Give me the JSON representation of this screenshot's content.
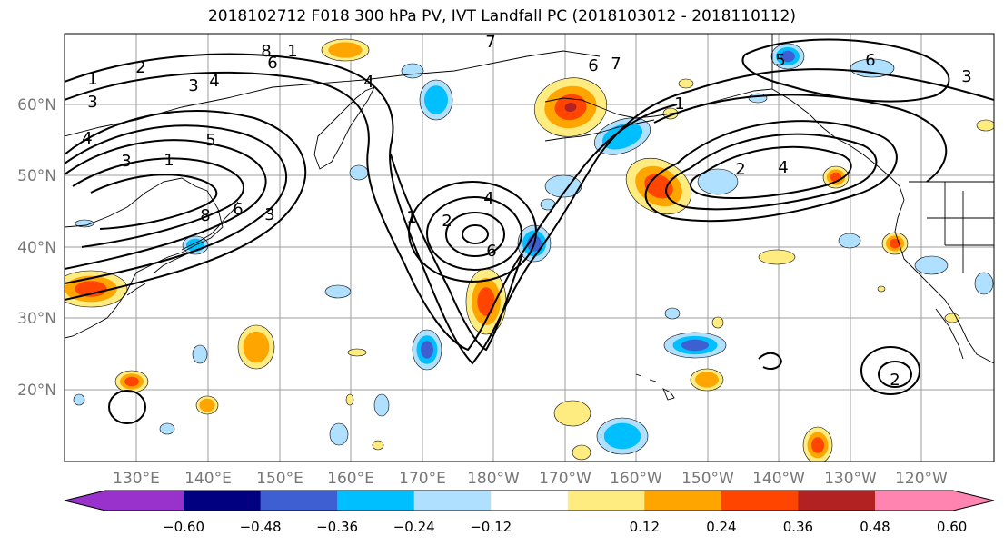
{
  "title": "2018102712 F018 300 hPa PV, IVT Landfall PC (2018103012 - 2018110112)",
  "map": {
    "longitude_labels": [
      "130°E",
      "140°E",
      "150°E",
      "160°E",
      "170°E",
      "180°W",
      "170°W",
      "160°W",
      "150°W",
      "140°W",
      "130°W",
      "120°W"
    ],
    "latitude_labels": [
      "60°N",
      "50°N",
      "40°N",
      "30°N",
      "20°N"
    ],
    "contour_labels": [
      "1",
      "2",
      "3",
      "4",
      "8",
      "6",
      "1",
      "3",
      "4",
      "3",
      "5",
      "1",
      "3",
      "4",
      "8",
      "6",
      "1",
      "2",
      "4",
      "6",
      "7",
      "6",
      "7",
      "1",
      "2",
      "4",
      "6",
      "5",
      "3",
      "2"
    ],
    "colors": {
      "land_outline": "#000000",
      "grid": "#9e9e9e",
      "contour": "#000000"
    }
  },
  "colorbar": {
    "colors": [
      "#9932cc",
      "#000080",
      "#3d5fd2",
      "#00bfff",
      "#b0e0ff",
      "#ffffff",
      "#ffec80",
      "#ffa500",
      "#ff4500",
      "#b22222",
      "#ff85b0"
    ],
    "tick_labels": [
      "−0.60",
      "−0.48",
      "−0.36",
      "−0.24",
      "−0.12",
      "0.12",
      "0.24",
      "0.36",
      "0.48",
      "0.60"
    ]
  }
}
